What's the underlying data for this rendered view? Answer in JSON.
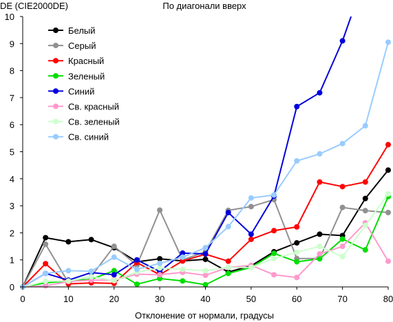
{
  "chart_data": {
    "type": "line",
    "title": "По диагонали вверх",
    "ylabel": "DE (CIE2000DE)",
    "xlabel": "Отклонение от нормали, градусы",
    "xlim": [
      0,
      80
    ],
    "ylim": [
      0,
      10
    ],
    "x_ticks": [
      "0",
      "10",
      "20",
      "30",
      "40",
      "50",
      "60",
      "70",
      "80"
    ],
    "y_ticks": [
      "0",
      "1",
      "2",
      "3",
      "4",
      "5",
      "6",
      "7",
      "8",
      "9",
      "10"
    ],
    "grid": false,
    "legend_position": "top-left",
    "x": [
      0,
      5,
      10,
      15,
      20,
      25,
      30,
      35,
      40,
      45,
      50,
      55,
      60,
      65,
      70,
      75,
      80
    ],
    "series": [
      {
        "name": "Белый",
        "color": "#000000",
        "values": [
          0,
          1.82,
          1.67,
          1.75,
          1.45,
          0.93,
          1.04,
          0.96,
          1.02,
          0.55,
          0.78,
          1.3,
          1.63,
          1.95,
          1.9,
          3.27,
          4.32
        ]
      },
      {
        "name": "Серый",
        "color": "#909090",
        "values": [
          0,
          1.58,
          0.16,
          0.39,
          1.5,
          0.8,
          2.84,
          1.0,
          1.3,
          2.83,
          2.97,
          3.23,
          1.05,
          1.05,
          2.94,
          2.82,
          2.75
        ]
      },
      {
        "name": "Красный",
        "color": "#ff0000",
        "values": [
          0,
          0.86,
          0.11,
          0.15,
          0.13,
          0.9,
          0.45,
          0.96,
          1.21,
          0.95,
          1.76,
          2.08,
          2.22,
          3.88,
          3.71,
          3.88,
          5.26
        ]
      },
      {
        "name": "Зеленый",
        "color": "#00dd00",
        "values": [
          0,
          0.15,
          0.22,
          0.28,
          0.6,
          0.1,
          0.31,
          0.22,
          0.08,
          0.5,
          0.72,
          1.24,
          0.93,
          1.04,
          1.77,
          1.37,
          3.34
        ]
      },
      {
        "name": "Синий",
        "color": "#0000dd",
        "values": [
          0,
          0.5,
          0.25,
          0.53,
          0.45,
          1.0,
          0.57,
          1.25,
          1.22,
          2.75,
          1.95,
          3.36,
          6.67,
          7.18,
          9.1,
          11.5,
          null
        ]
      },
      {
        "name": "Св. красный",
        "color": "#ff99cc",
        "values": [
          0,
          0.04,
          0.2,
          0.25,
          0.25,
          0.47,
          0.45,
          0.54,
          0.43,
          0.72,
          0.8,
          0.45,
          0.35,
          1.22,
          1.5,
          2.37,
          0.95
        ]
      },
      {
        "name": "Св. зеленый",
        "color": "#ccffcc",
        "values": [
          0,
          0.21,
          0.22,
          0.38,
          0.23,
          0.55,
          0.7,
          0.65,
          0.6,
          0.72,
          0.72,
          1.05,
          1.28,
          1.5,
          1.12,
          2.27,
          3.44
        ]
      },
      {
        "name": "Св. синий",
        "color": "#99ccff",
        "values": [
          0,
          0.5,
          0.6,
          0.58,
          1.1,
          0.65,
          0.87,
          1.1,
          1.45,
          2.23,
          3.29,
          3.4,
          4.66,
          4.92,
          5.3,
          5.96,
          9.05
        ]
      }
    ]
  }
}
